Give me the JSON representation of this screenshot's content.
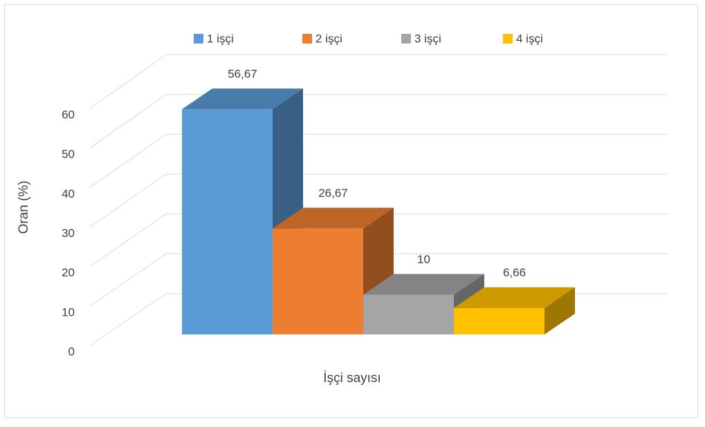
{
  "chart_data": {
    "type": "bar3d",
    "xlabel": "İşçi sayısı",
    "ylabel": "Oran (%)",
    "categories": [
      null
    ],
    "series": [
      {
        "name": "1 işçi",
        "color": "#5b9bd5",
        "values": [
          56.67
        ],
        "value_labels": [
          "56,67"
        ]
      },
      {
        "name": "2 işçi",
        "color": "#ed7d31",
        "values": [
          26.67
        ],
        "value_labels": [
          "26,67"
        ]
      },
      {
        "name": "3 işçi",
        "color": "#a5a5a5",
        "values": [
          10
        ],
        "value_labels": [
          "10"
        ]
      },
      {
        "name": "4 işçi",
        "color": "#ffc000",
        "values": [
          6.66
        ],
        "value_labels": [
          "6,66"
        ]
      }
    ],
    "ylim": [
      0,
      60
    ],
    "yticks": [
      0,
      10,
      20,
      30,
      40,
      50,
      60
    ],
    "grid": true,
    "legend": "top"
  }
}
